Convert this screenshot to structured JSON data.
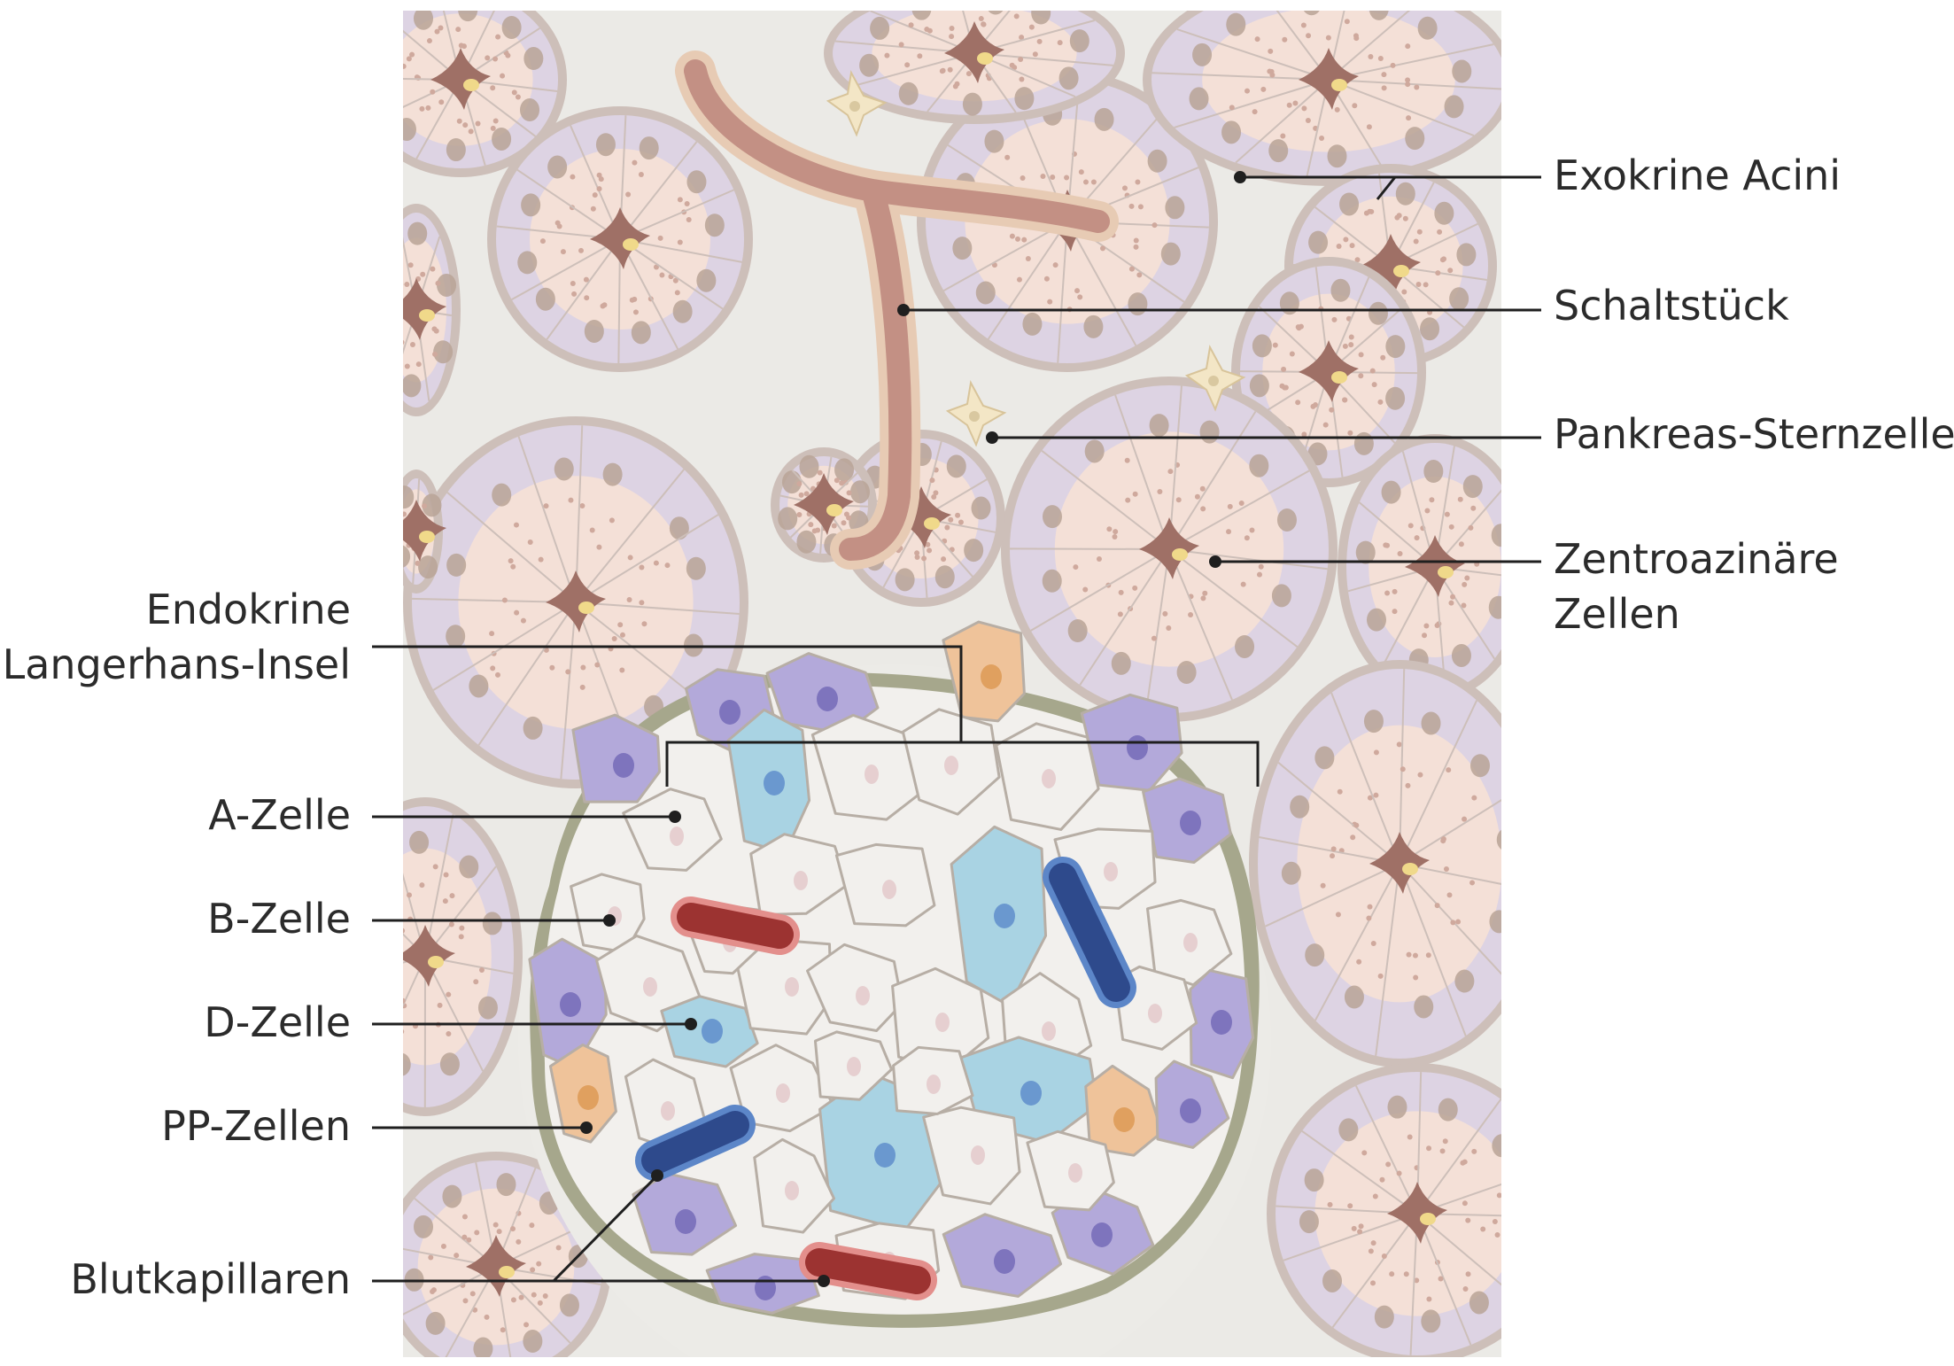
{
  "diagram": {
    "labels_right": [
      {
        "key": "exokrine",
        "lines": [
          "Exokrine Acini"
        ]
      },
      {
        "key": "schaltstueck",
        "lines": [
          "Schaltstück"
        ]
      },
      {
        "key": "sternzelle",
        "lines": [
          "Pankreas-Sternzelle"
        ]
      },
      {
        "key": "zentroazinaer",
        "lines": [
          "Zentroazinäre",
          "Zellen"
        ]
      }
    ],
    "labels_left": [
      {
        "key": "insel",
        "lines": [
          "Endokrine",
          "Langerhans-Insel"
        ]
      },
      {
        "key": "a_zelle",
        "lines": [
          "A-Zelle"
        ]
      },
      {
        "key": "b_zelle",
        "lines": [
          "B-Zelle"
        ]
      },
      {
        "key": "d_zelle",
        "lines": [
          "D-Zelle"
        ]
      },
      {
        "key": "pp_zellen",
        "lines": [
          "PP-Zellen"
        ]
      },
      {
        "key": "blut",
        "lines": [
          "Blutkapillaren"
        ]
      }
    ],
    "colors": {
      "background": "#ffffff",
      "tissue": "#ebeae6",
      "acinus_border": "#cdbfb9",
      "acinus_outer": "#ddd3e3",
      "acinus_inner": "#f4e0d7",
      "lumen": "#9f7066",
      "duct": "#c39084",
      "a_cell": "#b3a9da",
      "b_cell": "#f2f0ed",
      "d_cell": "#a9d3e3",
      "pp_cell": "#efc39a",
      "capillary_arterial": "#9c3331",
      "capillary_venous": "#2e4a8c",
      "leader_line": "#1f1f1f"
    }
  }
}
